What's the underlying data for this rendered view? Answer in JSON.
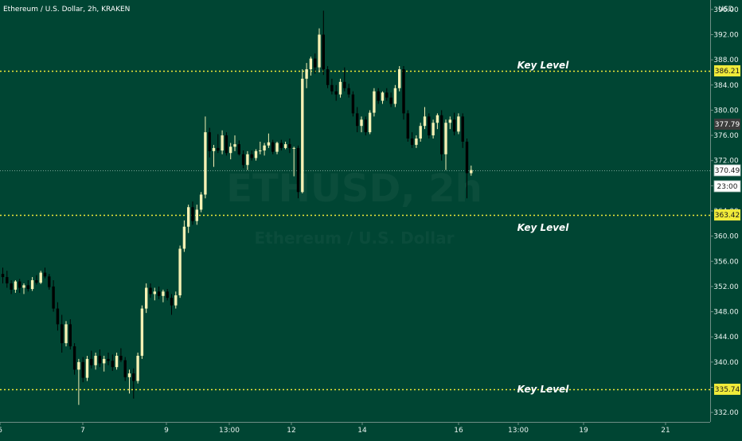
{
  "chart_data": {
    "type": "candlestick",
    "title": "Ethereum / U.S. Dollar, 2h, KRAKEN",
    "currency": "USD",
    "watermark": "ETHUSD, 2h",
    "watermark_sub": "Ethereum / U.S. Dollar",
    "ylim": [
      330.5,
      397.5
    ],
    "y_ticks": [
      "396.00",
      "392.00",
      "388.00",
      "384.00",
      "380.00",
      "376.00",
      "372.00",
      "368.00",
      "364.00",
      "360.00",
      "356.00",
      "352.00",
      "348.00",
      "344.00",
      "340.00",
      "336.00",
      "332.00"
    ],
    "x_ticks": [
      "6",
      "7",
      "9",
      "13:00",
      "12",
      "14",
      "16",
      "13:00",
      "19",
      "21"
    ],
    "key_levels": [
      {
        "value": 386.21,
        "label": "Key Level",
        "tag": "386.21"
      },
      {
        "value": 363.42,
        "label": "Key Level",
        "tag": "363.42"
      },
      {
        "value": 335.74,
        "label": "Key Level",
        "tag": "335.74"
      }
    ],
    "price_tags": [
      {
        "value": 377.79,
        "text": "377.79",
        "style": "grey"
      },
      {
        "value": 370.49,
        "text": "370.49",
        "style": "white"
      },
      {
        "value": 367.9,
        "text": "23:00",
        "style": "white"
      }
    ],
    "last_price": 370.49,
    "ohlc": [
      [
        354.0,
        355.0,
        352.5,
        353.5
      ],
      [
        353.5,
        354.5,
        351.8,
        352.5
      ],
      [
        352.5,
        353.0,
        350.8,
        351.5
      ],
      [
        351.5,
        353.0,
        351.0,
        352.8
      ],
      [
        352.8,
        353.2,
        351.0,
        351.8
      ],
      [
        351.8,
        352.5,
        350.8,
        352.2
      ],
      [
        352.2,
        353.0,
        351.2,
        351.6
      ],
      [
        351.6,
        353.5,
        351.3,
        353.0
      ],
      [
        353.0,
        353.8,
        352.3,
        352.6
      ],
      [
        352.6,
        354.5,
        352.4,
        354.2
      ],
      [
        354.2,
        355.0,
        353.3,
        353.6
      ],
      [
        353.6,
        354.0,
        351.5,
        351.9
      ],
      [
        352.0,
        353.0,
        348.0,
        348.5
      ],
      [
        348.5,
        349.5,
        345.0,
        346.0
      ],
      [
        346.0,
        347.5,
        341.5,
        343.0
      ],
      [
        343.0,
        346.5,
        342.5,
        346.0
      ],
      [
        346.0,
        346.8,
        342.0,
        342.5
      ],
      [
        342.5,
        343.0,
        338.0,
        338.8
      ],
      [
        338.8,
        340.5,
        333.2,
        340.0
      ],
      [
        340.0,
        340.8,
        336.8,
        337.5
      ],
      [
        337.5,
        341.0,
        337.0,
        340.5
      ],
      [
        340.5,
        341.8,
        339.0,
        339.5
      ],
      [
        339.5,
        341.5,
        338.8,
        341.0
      ],
      [
        341.0,
        342.0,
        339.2,
        339.8
      ],
      [
        339.8,
        341.0,
        338.5,
        340.5
      ],
      [
        340.5,
        341.5,
        339.5,
        340.2
      ],
      [
        340.2,
        341.2,
        338.6,
        339.2
      ],
      [
        339.2,
        341.5,
        338.8,
        341.0
      ],
      [
        341.0,
        342.2,
        340.0,
        340.3
      ],
      [
        340.3,
        340.8,
        337.0,
        337.6
      ],
      [
        337.6,
        338.8,
        335.0,
        338.2
      ],
      [
        338.2,
        339.0,
        334.2,
        337.0
      ],
      [
        337.0,
        341.5,
        336.6,
        341.0
      ],
      [
        341.0,
        349.0,
        340.5,
        348.5
      ],
      [
        348.5,
        352.5,
        347.8,
        351.8
      ],
      [
        351.8,
        352.5,
        350.2,
        350.8
      ],
      [
        350.8,
        351.8,
        349.8,
        351.2
      ],
      [
        351.2,
        352.0,
        350.0,
        350.5
      ],
      [
        350.5,
        351.5,
        349.5,
        351.2
      ],
      [
        351.2,
        351.6,
        349.8,
        350.2
      ],
      [
        350.2,
        350.8,
        347.5,
        349.0
      ],
      [
        349.0,
        351.2,
        348.5,
        350.6
      ],
      [
        350.6,
        358.5,
        350.2,
        358.0
      ],
      [
        358.0,
        362.5,
        357.5,
        361.5
      ],
      [
        361.5,
        365.0,
        360.5,
        364.6
      ],
      [
        364.6,
        365.5,
        361.8,
        362.4
      ],
      [
        362.4,
        365.0,
        361.8,
        364.2
      ],
      [
        364.2,
        367.0,
        363.8,
        366.6
      ],
      [
        366.6,
        379.0,
        366.0,
        376.5
      ],
      [
        376.5,
        377.2,
        372.5,
        373.5
      ],
      [
        373.5,
        374.5,
        371.0,
        374.0
      ],
      [
        374.0,
        376.2,
        373.2,
        373.6
      ],
      [
        373.6,
        376.8,
        373.0,
        376.0
      ],
      [
        376.0,
        376.5,
        372.8,
        373.2
      ],
      [
        373.2,
        374.8,
        372.2,
        374.2
      ],
      [
        374.2,
        376.0,
        373.5,
        374.6
      ],
      [
        374.6,
        375.2,
        372.8,
        373.0
      ],
      [
        373.0,
        373.6,
        370.8,
        371.3
      ],
      [
        371.3,
        373.5,
        370.5,
        373.0
      ],
      [
        373.0,
        373.6,
        372.0,
        372.4
      ],
      [
        372.4,
        373.8,
        372.0,
        373.5
      ],
      [
        373.5,
        375.0,
        373.0,
        373.6
      ],
      [
        373.6,
        374.8,
        372.8,
        374.4
      ],
      [
        374.4,
        376.3,
        374.0,
        374.9
      ],
      [
        374.9,
        375.3,
        373.0,
        373.4
      ],
      [
        373.4,
        375.0,
        373.0,
        374.8
      ],
      [
        374.8,
        375.3,
        373.6,
        374.0
      ],
      [
        374.0,
        375.0,
        373.8,
        374.6
      ],
      [
        374.6,
        375.5,
        373.2,
        374.0
      ],
      [
        374.0,
        374.2,
        369.5,
        374.0
      ],
      [
        374.0,
        374.4,
        366.0,
        367.0
      ],
      [
        367.0,
        386.5,
        366.8,
        385.0
      ],
      [
        385.0,
        387.5,
        383.5,
        386.5
      ],
      [
        386.5,
        388.5,
        385.5,
        388.2
      ],
      [
        388.2,
        389.0,
        385.8,
        386.8
      ],
      [
        386.8,
        393.0,
        386.0,
        392.0
      ],
      [
        392.0,
        395.8,
        385.6,
        386.5
      ],
      [
        386.5,
        387.0,
        383.5,
        384.0
      ],
      [
        384.0,
        385.0,
        382.5,
        383.0
      ],
      [
        383.0,
        384.0,
        381.5,
        382.5
      ],
      [
        382.5,
        385.0,
        382.0,
        384.5
      ],
      [
        384.5,
        386.8,
        383.0,
        383.5
      ],
      [
        383.5,
        384.2,
        382.0,
        382.5
      ],
      [
        382.5,
        383.0,
        379.0,
        379.5
      ],
      [
        379.5,
        380.5,
        376.5,
        377.5
      ],
      [
        377.5,
        379.0,
        376.5,
        378.5
      ],
      [
        378.5,
        379.0,
        376.0,
        376.5
      ],
      [
        376.5,
        380.0,
        376.2,
        379.6
      ],
      [
        379.6,
        383.5,
        379.0,
        383.0
      ],
      [
        383.0,
        383.5,
        381.0,
        381.5
      ],
      [
        381.5,
        383.0,
        381.0,
        382.8
      ],
      [
        382.8,
        383.5,
        381.5,
        382.0
      ],
      [
        382.0,
        382.8,
        380.5,
        381.0
      ],
      [
        381.0,
        384.0,
        380.5,
        383.5
      ],
      [
        383.5,
        387.0,
        383.0,
        386.5
      ],
      [
        386.5,
        387.0,
        378.5,
        379.5
      ],
      [
        379.5,
        380.0,
        375.0,
        375.5
      ],
      [
        375.5,
        376.5,
        374.0,
        374.5
      ],
      [
        374.5,
        376.0,
        374.0,
        375.5
      ],
      [
        375.5,
        378.0,
        375.0,
        377.5
      ],
      [
        377.5,
        380.5,
        377.0,
        379.0
      ],
      [
        379.0,
        379.5,
        375.5,
        376.0
      ],
      [
        376.0,
        378.5,
        375.5,
        378.0
      ],
      [
        378.0,
        379.5,
        377.0,
        379.2
      ],
      [
        379.2,
        380.0,
        372.0,
        373.0
      ],
      [
        373.0,
        378.5,
        370.5,
        378.0
      ],
      [
        378.0,
        379.0,
        377.0,
        378.5
      ],
      [
        378.5,
        379.6,
        376.0,
        376.6
      ],
      [
        376.6,
        379.5,
        376.2,
        379.0
      ],
      [
        379.0,
        379.5,
        374.0,
        375.0
      ],
      [
        375.0,
        375.5,
        366.0,
        370.0
      ],
      [
        370.0,
        371.2,
        369.6,
        370.49
      ]
    ]
  }
}
